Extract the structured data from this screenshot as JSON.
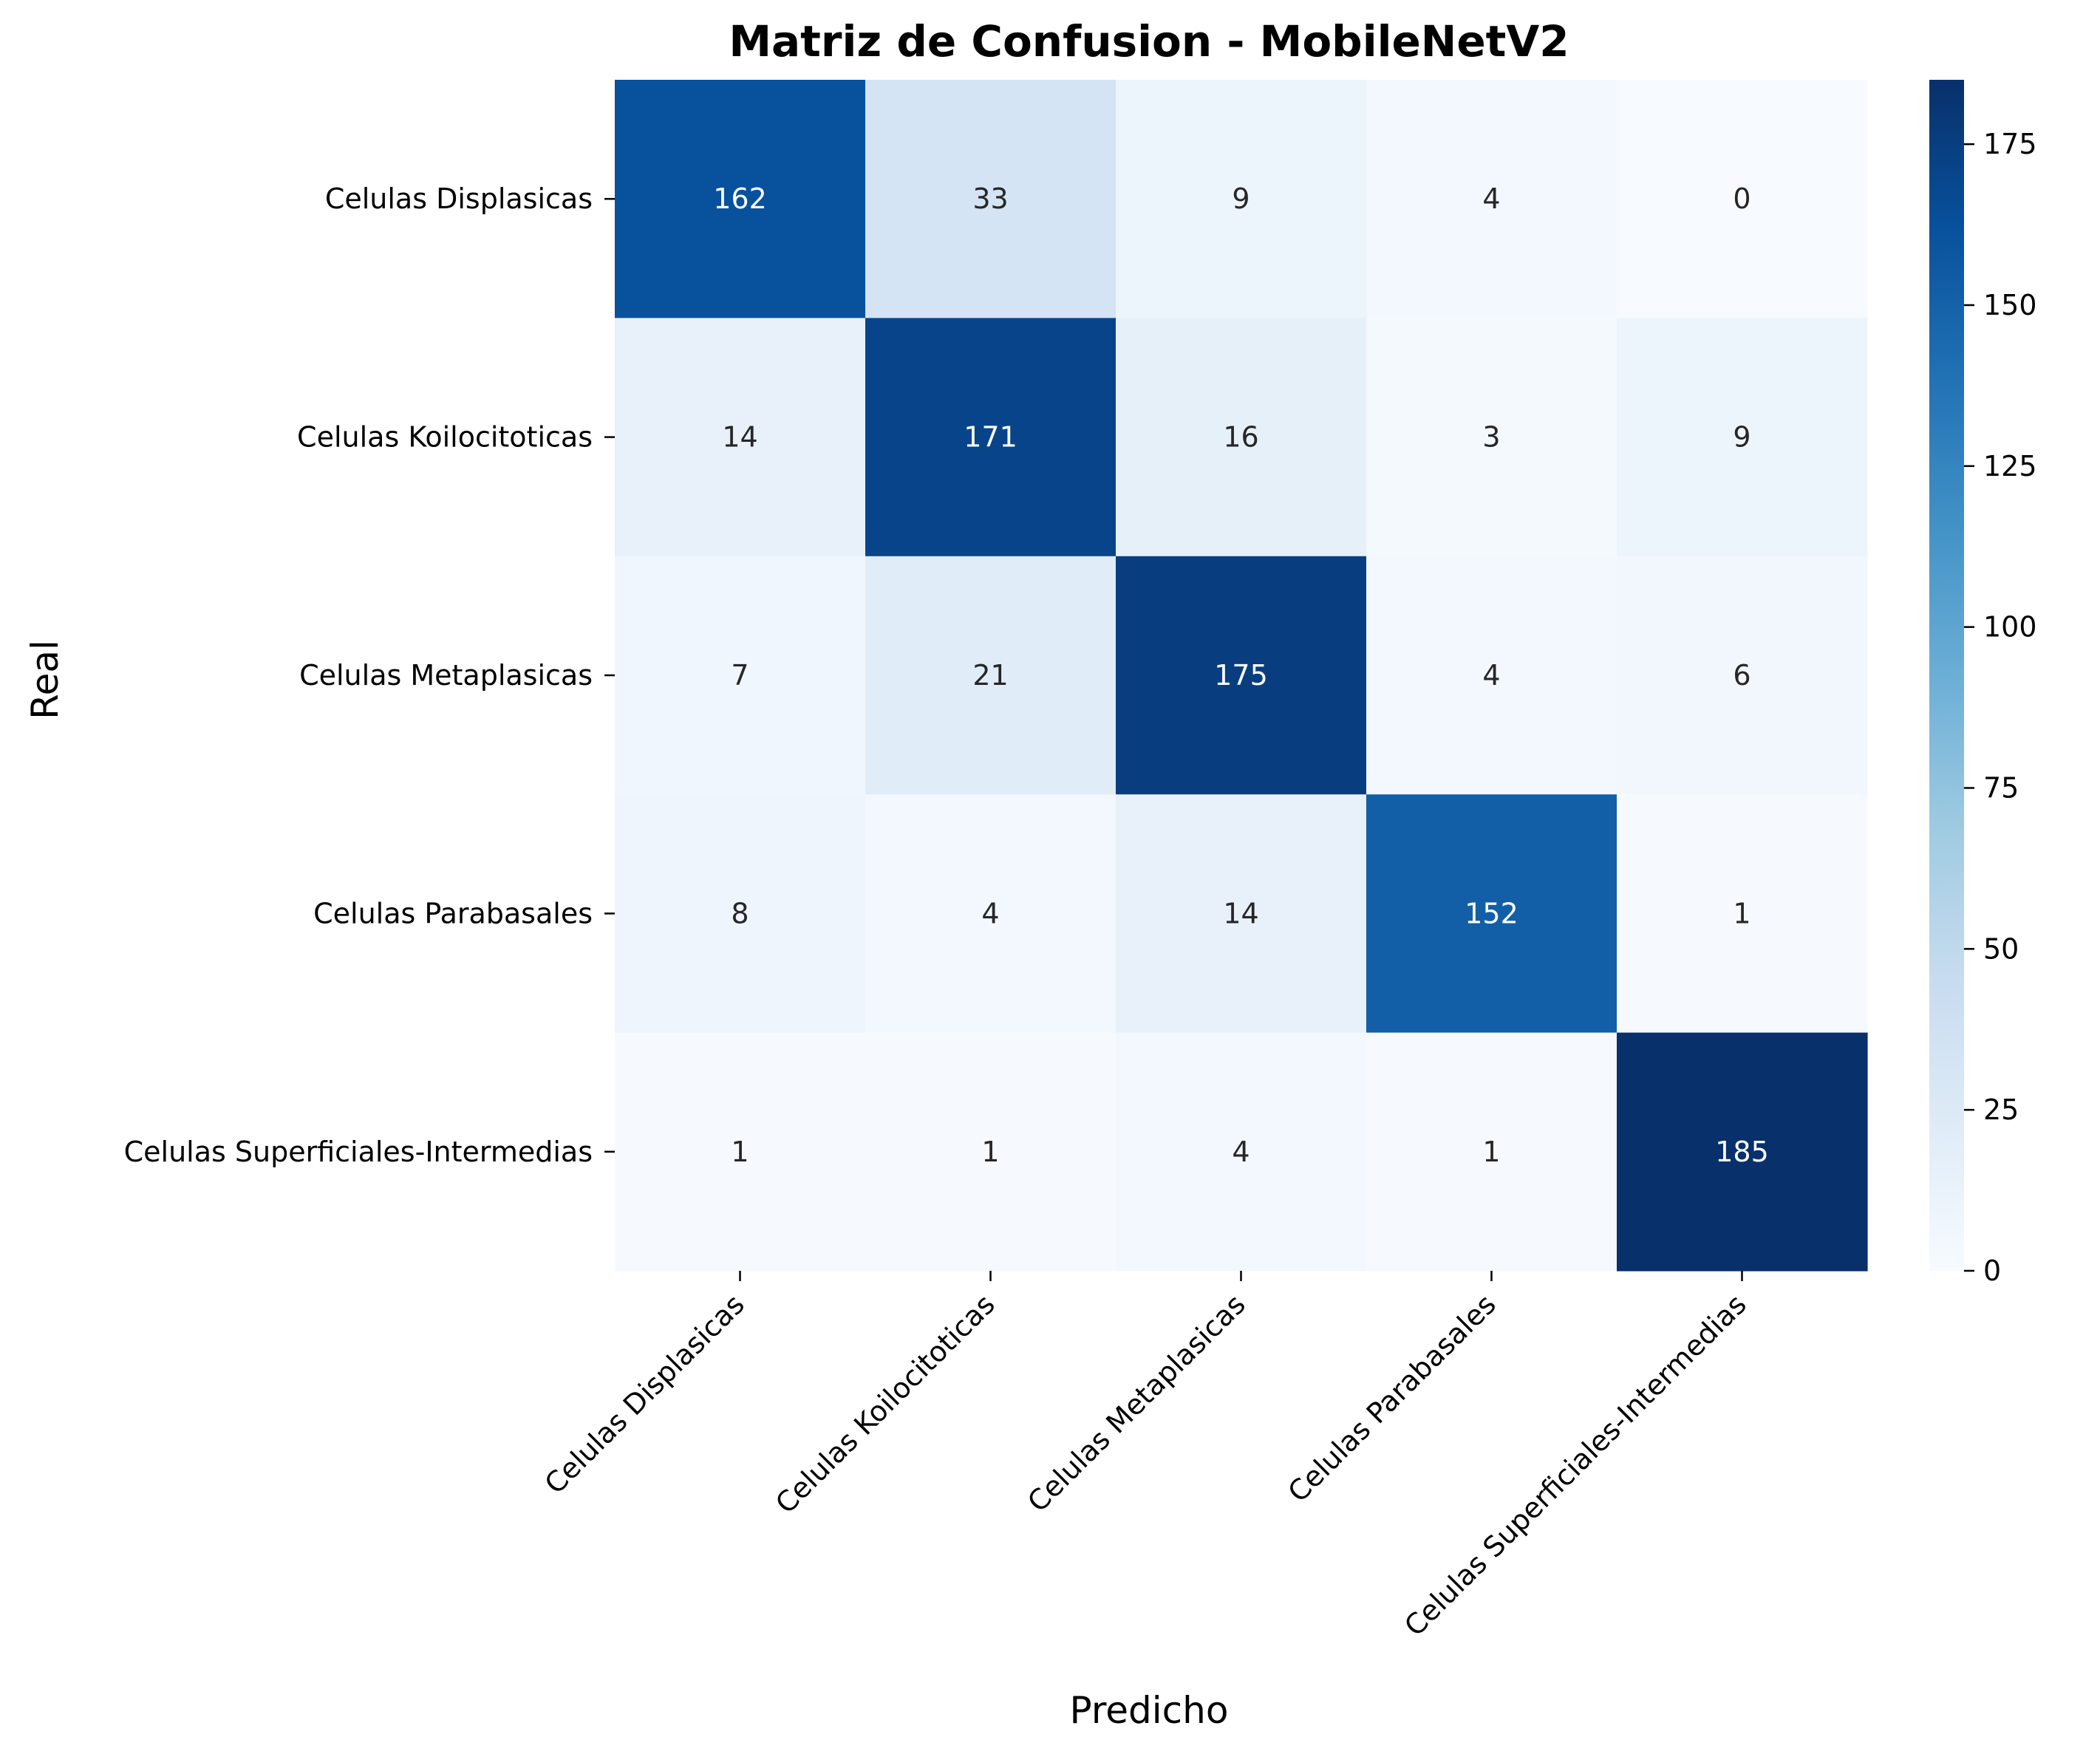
{
  "chart_data": {
    "type": "heatmap",
    "title": "Matriz de Confusion - MobileNetV2",
    "xlabel": "Predicho",
    "ylabel": "Real",
    "x_categories": [
      "Celulas Displasicas",
      "Celulas Koilocitoticas",
      "Celulas Metaplasicas",
      "Celulas Parabasales",
      "Celulas Superficiales-Intermedias"
    ],
    "y_categories": [
      "Celulas Displasicas",
      "Celulas Koilocitoticas",
      "Celulas Metaplasicas",
      "Celulas Parabasales",
      "Celulas Superficiales-Intermedias"
    ],
    "values": [
      [
        162,
        33,
        9,
        4,
        0
      ],
      [
        14,
        171,
        16,
        3,
        9
      ],
      [
        7,
        21,
        175,
        4,
        6
      ],
      [
        8,
        4,
        14,
        152,
        1
      ],
      [
        1,
        1,
        4,
        1,
        185
      ]
    ],
    "colorbar": {
      "colormap": "Blues",
      "range": [
        0,
        185
      ],
      "ticks": [
        0,
        25,
        50,
        75,
        100,
        125,
        150,
        175
      ]
    }
  }
}
